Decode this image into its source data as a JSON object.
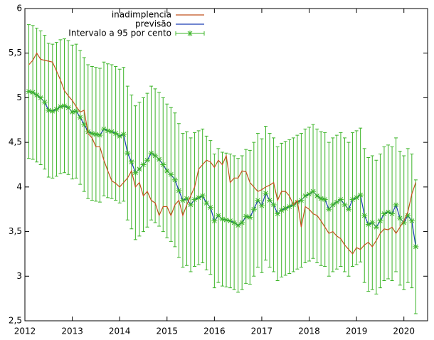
{
  "chart_data": {
    "type": "line",
    "x": [
      2012.083,
      2012.167,
      2012.25,
      2012.333,
      2012.417,
      2012.5,
      2012.583,
      2012.667,
      2012.75,
      2012.833,
      2012.917,
      2013,
      2013.083,
      2013.167,
      2013.25,
      2013.333,
      2013.417,
      2013.5,
      2013.583,
      2013.667,
      2013.75,
      2013.833,
      2013.917,
      2014,
      2014.083,
      2014.167,
      2014.25,
      2014.333,
      2014.417,
      2014.5,
      2014.583,
      2014.667,
      2014.75,
      2014.833,
      2014.917,
      2015,
      2015.083,
      2015.167,
      2015.25,
      2015.333,
      2015.417,
      2015.5,
      2015.583,
      2015.667,
      2015.75,
      2015.833,
      2015.917,
      2016,
      2016.083,
      2016.167,
      2016.25,
      2016.333,
      2016.417,
      2016.5,
      2016.583,
      2016.667,
      2016.75,
      2016.833,
      2016.917,
      2017,
      2017.083,
      2017.167,
      2017.25,
      2017.333,
      2017.417,
      2017.5,
      2017.583,
      2017.667,
      2017.75,
      2017.833,
      2017.917,
      2018,
      2018.083,
      2018.167,
      2018.25,
      2018.333,
      2018.417,
      2018.5,
      2018.583,
      2018.667,
      2018.75,
      2018.833,
      2018.917,
      2019,
      2019.083,
      2019.167,
      2019.25,
      2019.333,
      2019.417,
      2019.5,
      2019.583,
      2019.667,
      2019.75,
      2019.833,
      2019.917,
      2020,
      2020.083,
      2020.167,
      2020.25
    ],
    "series": [
      {
        "name": "inadimplencia",
        "color": "#c0521c",
        "values": [
          5.37,
          5.42,
          5.5,
          5.43,
          5.42,
          5.41,
          5.4,
          5.3,
          5.2,
          5.08,
          5.02,
          4.97,
          4.9,
          4.84,
          4.86,
          4.6,
          4.55,
          4.45,
          4.45,
          4.3,
          4.18,
          4.07,
          4.04,
          4.0,
          4.05,
          4.1,
          4.18,
          4.0,
          4.05,
          3.9,
          3.95,
          3.85,
          3.82,
          3.68,
          3.78,
          3.78,
          3.68,
          3.8,
          3.85,
          3.68,
          3.8,
          3.9,
          4.0,
          4.2,
          4.25,
          4.3,
          4.28,
          4.22,
          4.3,
          4.25,
          4.35,
          4.05,
          4.1,
          4.1,
          4.18,
          4.17,
          4.05,
          4.0,
          3.95,
          3.97,
          4.0,
          4.02,
          4.05,
          3.85,
          3.95,
          3.95,
          3.9,
          3.8,
          3.85,
          3.55,
          3.78,
          3.75,
          3.7,
          3.68,
          3.62,
          3.55,
          3.48,
          3.5,
          3.45,
          3.42,
          3.35,
          3.3,
          3.25,
          3.32,
          3.3,
          3.35,
          3.38,
          3.33,
          3.4,
          3.48,
          3.53,
          3.52,
          3.55,
          3.48,
          3.55,
          3.62,
          3.72,
          3.92,
          4.05
        ]
      },
      {
        "name": "previsão",
        "color": "#1a3cb4",
        "values": [
          5.07,
          5.06,
          5.03,
          5.0,
          4.95,
          4.86,
          4.85,
          4.87,
          4.9,
          4.91,
          4.89,
          4.84,
          4.85,
          4.78,
          4.7,
          4.62,
          4.6,
          4.59,
          4.58,
          4.65,
          4.63,
          4.62,
          4.6,
          4.57,
          4.59,
          4.38,
          4.28,
          4.16,
          4.2,
          4.25,
          4.3,
          4.38,
          4.35,
          4.31,
          4.25,
          4.18,
          4.14,
          4.08,
          3.96,
          3.85,
          3.87,
          3.8,
          3.86,
          3.88,
          3.9,
          3.82,
          3.77,
          3.62,
          3.68,
          3.64,
          3.63,
          3.62,
          3.6,
          3.57,
          3.6,
          3.67,
          3.66,
          3.75,
          3.85,
          3.79,
          3.93,
          3.85,
          3.8,
          3.7,
          3.74,
          3.76,
          3.78,
          3.8,
          3.83,
          3.85,
          3.9,
          3.92,
          3.95,
          3.9,
          3.87,
          3.86,
          3.75,
          3.8,
          3.83,
          3.86,
          3.8,
          3.75,
          3.86,
          3.88,
          3.91,
          3.68,
          3.58,
          3.6,
          3.55,
          3.62,
          3.7,
          3.72,
          3.7,
          3.8,
          3.65,
          3.6,
          3.68,
          3.62,
          3.33
        ]
      },
      {
        "name": "Intervalo a 95 por cento",
        "color": "#3cb428",
        "error": 0.75
      }
    ],
    "xlim": [
      2012,
      2020.5
    ],
    "xticks": [
      2012,
      2013,
      2014,
      2015,
      2016,
      2017,
      2018,
      2019,
      2020
    ],
    "ylim": [
      2.5,
      6
    ],
    "yticks": [
      {
        "value": 2.5,
        "label": "2,5"
      },
      3,
      {
        "value": 3.5,
        "label": "3,5"
      },
      4,
      {
        "value": 4.5,
        "label": "4,5"
      },
      5,
      {
        "value": 5.5,
        "label": "5,5"
      },
      6
    ],
    "legend": "top-right"
  }
}
